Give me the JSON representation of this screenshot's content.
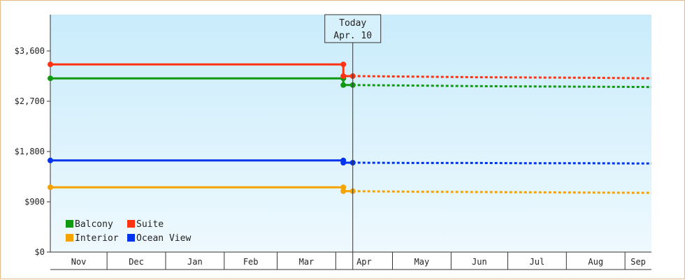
{
  "chart_data": {
    "type": "line",
    "title": "",
    "xlabel": "",
    "ylabel": "",
    "y_ticks": [
      "$0",
      "$900",
      "$1,800",
      "$2,700",
      "$3,600"
    ],
    "y_tick_values": [
      0,
      900,
      1800,
      2700,
      3600
    ],
    "ylim": [
      0,
      4250
    ],
    "x_categories": [
      "Nov",
      "Dec",
      "Jan",
      "Feb",
      "Mar",
      "Apr",
      "May",
      "Jun",
      "Jul",
      "Aug",
      "Sep"
    ],
    "xlim": [
      "2025-11-01",
      "2026-09-15"
    ],
    "today": {
      "line1": "Today",
      "line2": "Apr. 10",
      "date": "2026-04-10"
    },
    "grid": false,
    "legend_position": "bottom-left",
    "series": [
      {
        "name": "Balcony",
        "color": "#119911",
        "historical": [
          [
            "2025-11-01",
            3110
          ],
          [
            "2026-04-05",
            3110
          ],
          [
            "2026-04-05",
            2990
          ],
          [
            "2026-04-10",
            2990
          ]
        ],
        "forecast": [
          [
            "2026-04-10",
            2990
          ],
          [
            "2026-05-15",
            2980
          ],
          [
            "2026-06-15",
            2970
          ],
          [
            "2026-07-15",
            2965
          ],
          [
            "2026-08-15",
            2960
          ],
          [
            "2026-09-15",
            2955
          ]
        ]
      },
      {
        "name": "Suite",
        "color": "#ff3311",
        "historical": [
          [
            "2025-11-01",
            3360
          ],
          [
            "2026-04-05",
            3360
          ],
          [
            "2026-04-05",
            3150
          ],
          [
            "2026-04-10",
            3150
          ]
        ],
        "forecast": [
          [
            "2026-04-10",
            3150
          ],
          [
            "2026-05-15",
            3140
          ],
          [
            "2026-06-15",
            3130
          ],
          [
            "2026-07-15",
            3125
          ],
          [
            "2026-08-15",
            3120
          ],
          [
            "2026-09-15",
            3110
          ]
        ]
      },
      {
        "name": "Interior",
        "color": "#f5a300",
        "historical": [
          [
            "2025-11-01",
            1160
          ],
          [
            "2026-04-05",
            1160
          ],
          [
            "2026-04-05",
            1090
          ],
          [
            "2026-04-10",
            1090
          ]
        ],
        "forecast": [
          [
            "2026-04-10",
            1090
          ],
          [
            "2026-05-15",
            1080
          ],
          [
            "2026-06-15",
            1075
          ],
          [
            "2026-07-15",
            1070
          ],
          [
            "2026-08-15",
            1065
          ],
          [
            "2026-09-15",
            1060
          ]
        ]
      },
      {
        "name": "Ocean View",
        "color": "#0033ee",
        "historical": [
          [
            "2025-11-01",
            1640
          ],
          [
            "2026-04-05",
            1640
          ],
          [
            "2026-04-05",
            1600
          ],
          [
            "2026-04-10",
            1600
          ]
        ],
        "forecast": [
          [
            "2026-04-10",
            1600
          ],
          [
            "2026-05-15",
            1595
          ],
          [
            "2026-06-15",
            1595
          ],
          [
            "2026-07-15",
            1590
          ],
          [
            "2026-08-15",
            1590
          ],
          [
            "2026-09-15",
            1585
          ]
        ]
      }
    ],
    "legend_order": [
      "Balcony",
      "Suite",
      "Interior",
      "Ocean View"
    ]
  }
}
